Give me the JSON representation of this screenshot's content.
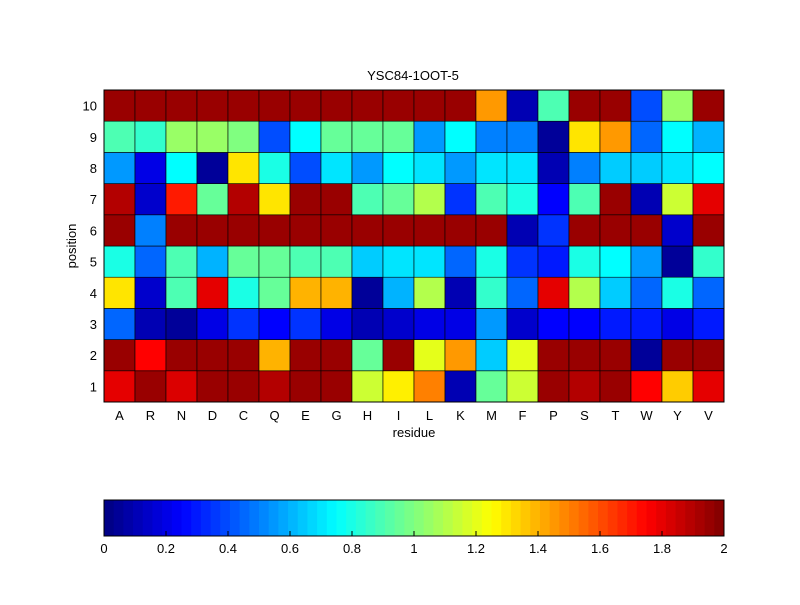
{
  "chart_data": {
    "type": "heatmap",
    "title": "YSC84-1OOT-5",
    "xlabel": "residue",
    "ylabel": "position",
    "colormap": "jet",
    "x_categories": [
      "A",
      "R",
      "N",
      "D",
      "C",
      "Q",
      "E",
      "G",
      "H",
      "I",
      "L",
      "K",
      "M",
      "F",
      "P",
      "S",
      "T",
      "W",
      "Y",
      "V"
    ],
    "y_categories": [
      "1",
      "2",
      "3",
      "4",
      "5",
      "6",
      "7",
      "8",
      "9",
      "10"
    ],
    "values": {
      "1": [
        1.8,
        1.95,
        1.82,
        1.95,
        1.95,
        1.9,
        1.95,
        1.95,
        1.15,
        1.28,
        1.5,
        0.1,
        0.95,
        1.15,
        1.95,
        1.9,
        1.95,
        1.75,
        1.35,
        1.8
      ],
      "2": [
        1.95,
        1.75,
        1.95,
        1.95,
        1.95,
        1.4,
        1.95,
        1.95,
        0.95,
        1.95,
        1.2,
        1.45,
        0.65,
        1.2,
        1.95,
        1.95,
        1.95,
        0.05,
        1.95,
        1.95
      ],
      "3": [
        0.45,
        0.1,
        0.05,
        0.2,
        0.35,
        0.25,
        0.35,
        0.2,
        0.1,
        0.15,
        0.2,
        0.2,
        0.55,
        0.15,
        0.25,
        0.25,
        0.3,
        0.3,
        0.2,
        0.3
      ],
      "4": [
        1.3,
        0.15,
        0.9,
        1.8,
        0.8,
        0.95,
        1.4,
        1.4,
        0.05,
        0.6,
        1.1,
        0.1,
        0.85,
        0.45,
        1.8,
        1.1,
        0.65,
        0.45,
        0.8,
        0.45
      ],
      "5": [
        0.8,
        0.45,
        0.9,
        0.6,
        0.95,
        0.95,
        0.9,
        0.9,
        0.65,
        0.7,
        0.7,
        0.45,
        0.8,
        0.35,
        0.3,
        0.8,
        0.75,
        0.55,
        0.05,
        0.85
      ],
      "6": [
        1.95,
        0.5,
        1.95,
        1.95,
        1.95,
        1.95,
        1.95,
        1.95,
        1.95,
        1.95,
        1.95,
        1.95,
        1.95,
        0.1,
        0.35,
        1.95,
        1.95,
        1.95,
        0.15,
        1.95
      ],
      "7": [
        1.9,
        0.15,
        1.7,
        0.95,
        1.9,
        1.3,
        1.95,
        1.95,
        0.9,
        0.95,
        1.1,
        0.35,
        0.9,
        0.8,
        0.25,
        0.9,
        1.95,
        0.1,
        1.15,
        1.8
      ],
      "8": [
        0.55,
        0.2,
        0.75,
        0.05,
        1.3,
        0.8,
        0.4,
        0.7,
        0.55,
        0.75,
        0.7,
        0.55,
        0.7,
        0.7,
        0.1,
        0.5,
        0.65,
        0.65,
        0.7,
        0.75
      ],
      "9": [
        0.9,
        0.85,
        1.05,
        1.05,
        1.0,
        0.4,
        0.75,
        0.95,
        0.95,
        0.95,
        0.55,
        0.75,
        0.5,
        0.5,
        0.05,
        1.3,
        1.45,
        0.45,
        0.75,
        0.6
      ],
      "10": [
        1.95,
        1.95,
        1.95,
        1.95,
        1.95,
        1.95,
        1.95,
        1.95,
        1.95,
        1.95,
        1.95,
        1.95,
        1.45,
        0.1,
        0.9,
        1.95,
        1.95,
        0.4,
        1.05,
        1.95
      ]
    },
    "colorbar": {
      "range": [
        0,
        2
      ],
      "tick_labels": [
        "0",
        "0.2",
        "0.4",
        "0.6",
        "0.8",
        "1",
        "1.2",
        "1.4",
        "1.6",
        "1.8",
        "2"
      ]
    }
  }
}
